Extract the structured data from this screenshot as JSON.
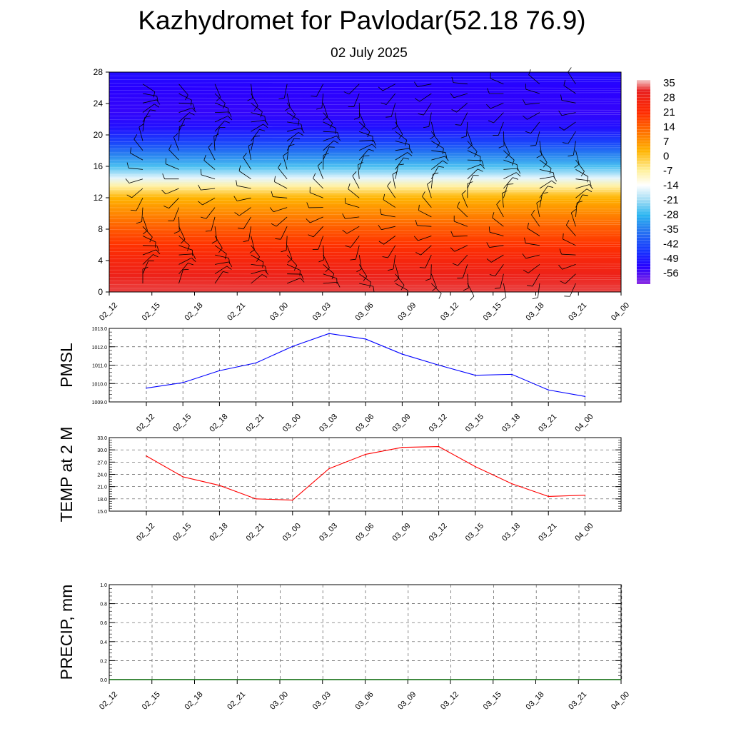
{
  "title": "Kazhydromet for Pavlodar(52.18 76.9)",
  "subtitle": "02 July 2025",
  "colors": {
    "pmsl_line": "#0000ff",
    "temp_line": "#ff0000",
    "precip_line": "#006400"
  },
  "chart_data": [
    {
      "type": "heatmap",
      "name": "vertical cross-section temperature with wind barbs",
      "x_tick_labels": [
        "02_12",
        "02_15",
        "02_18",
        "02_21",
        "03_00",
        "03_03",
        "03_06",
        "03_09",
        "03_12",
        "03_15",
        "03_18",
        "03_21",
        "04_00"
      ],
      "y_ticks": [
        0,
        4,
        8,
        12,
        16,
        20,
        24,
        28
      ],
      "ylim": [
        0,
        28
      ],
      "colorbar_labels": [
        "35",
        "28",
        "21",
        "14",
        "7",
        "0",
        "-7",
        "-14",
        "-21",
        "-28",
        "-35",
        "-42",
        "-49",
        "-56"
      ],
      "colorbar_stops": [
        {
          "value": 35,
          "color": "#f4c8c8"
        },
        {
          "value": 30,
          "color": "#e82020"
        },
        {
          "value": 20,
          "color": "#ff2a00"
        },
        {
          "value": 10,
          "color": "#ff7800"
        },
        {
          "value": 2,
          "color": "#ffb400"
        },
        {
          "value": -7,
          "color": "#fff09a"
        },
        {
          "value": -14,
          "color": "#ffffff"
        },
        {
          "value": -21,
          "color": "#a0dcf4"
        },
        {
          "value": -28,
          "color": "#28b4f0"
        },
        {
          "value": -35,
          "color": "#2878f0"
        },
        {
          "value": -45,
          "color": "#1430ff"
        },
        {
          "value": -52,
          "color": "#2800ff"
        },
        {
          "value": -60,
          "color": "#8a2be2"
        }
      ]
    },
    {
      "type": "line",
      "ylabel": "PMSL",
      "x_tick_labels": [
        "02_12",
        "02_15",
        "02_18",
        "02_21",
        "03_00",
        "03_03",
        "03_06",
        "03_09",
        "03_12",
        "03_15",
        "03_18",
        "03_21",
        "04_00"
      ],
      "y_tick_labels": [
        "1009.0",
        "1010.0",
        "1011.0",
        "1012.0",
        "1013.0"
      ],
      "ylim": [
        1009.0,
        1013.0
      ],
      "values": [
        1009.75,
        1010.05,
        1010.7,
        1011.12,
        1012.02,
        1012.72,
        1012.42,
        1011.6,
        1011.0,
        1010.45,
        1010.5,
        1009.65,
        1009.3
      ]
    },
    {
      "type": "line",
      "ylabel": "TEMP at 2 M",
      "x_tick_labels": [
        "02_12",
        "02_15",
        "02_18",
        "02_21",
        "03_00",
        "03_03",
        "03_06",
        "03_09",
        "03_12",
        "03_15",
        "03_18",
        "03_21",
        "04_00"
      ],
      "y_tick_labels": [
        "15.0",
        "18.0",
        "21.0",
        "24.0",
        "27.0",
        "30.0",
        "33.0"
      ],
      "ylim": [
        15.0,
        33.0
      ],
      "values": [
        28.5,
        23.4,
        21.3,
        18.0,
        17.7,
        25.4,
        28.9,
        30.6,
        30.8,
        25.9,
        21.7,
        18.6,
        18.9
      ]
    },
    {
      "type": "line",
      "ylabel": "PRECIP, mm",
      "x_tick_labels": [
        "02_12",
        "02_15",
        "02_18",
        "02_21",
        "03_00",
        "03_03",
        "03_06",
        "03_09",
        "03_12",
        "03_15",
        "03_18",
        "03_21",
        "04_00"
      ],
      "y_tick_labels": [
        "0.0",
        "0.2",
        "0.4",
        "0.6",
        "0.8",
        "1.0"
      ],
      "ylim": [
        0.0,
        1.0
      ],
      "values": [
        0,
        0,
        0,
        0,
        0,
        0,
        0,
        0,
        0,
        0,
        0,
        0,
        0
      ]
    }
  ]
}
